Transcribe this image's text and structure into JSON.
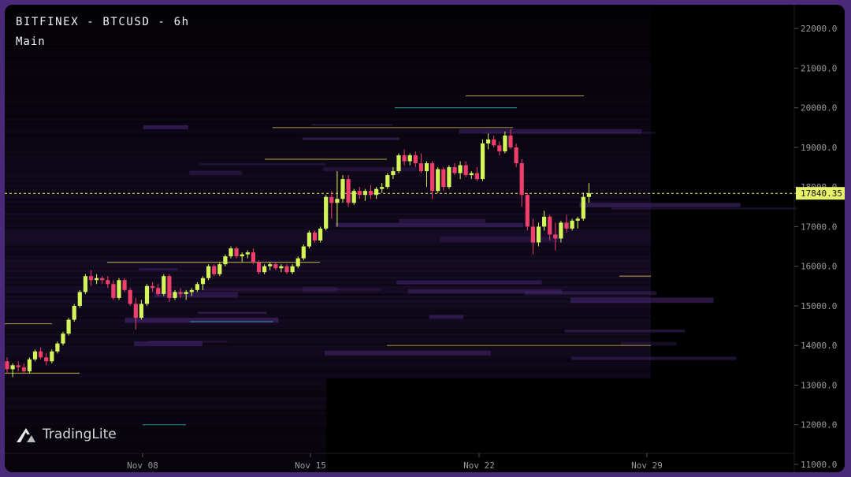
{
  "header": {
    "title": "BITFINEX - BTCUSD - 6h",
    "subtitle": "Main"
  },
  "brand": {
    "name": "TradingLite"
  },
  "colors": {
    "up": "#d4f55a",
    "down": "#ee3e6c",
    "price_line": "#e6f36a",
    "heat_low": "#2a1646",
    "heat_mid": "#4b2a7a",
    "axis_text": "#9a9a9a"
  },
  "chart_data": {
    "type": "candlestick",
    "exchange": "BITFINEX",
    "symbol": "BTCUSD",
    "interval": "6h",
    "ylim": [
      10800,
      22600
    ],
    "y_ticks": [
      "22000.0",
      "21000.0",
      "20000.0",
      "19000.0",
      "18000.0",
      "17000.0",
      "16000.0",
      "15000.0",
      "14000.0",
      "13000.0",
      "12000.0",
      "11000.0"
    ],
    "x_ticks": [
      "Nov 08",
      "Nov 15",
      "Nov 22",
      "Nov 29"
    ],
    "last_price": "17840.35",
    "ohlc": [
      [
        13600,
        13700,
        13300,
        13400
      ],
      [
        13400,
        13550,
        13200,
        13500
      ],
      [
        13500,
        13600,
        13350,
        13450
      ],
      [
        13450,
        13550,
        13300,
        13350
      ],
      [
        13350,
        13700,
        13300,
        13650
      ],
      [
        13650,
        13900,
        13600,
        13850
      ],
      [
        13850,
        13950,
        13650,
        13700
      ],
      [
        13700,
        13800,
        13500,
        13600
      ],
      [
        13600,
        13900,
        13550,
        13850
      ],
      [
        13850,
        14100,
        13800,
        14050
      ],
      [
        14050,
        14350,
        14000,
        14300
      ],
      [
        14300,
        14700,
        14250,
        14650
      ],
      [
        14650,
        15050,
        14600,
        15000
      ],
      [
        15000,
        15400,
        14950,
        15350
      ],
      [
        15350,
        15800,
        15300,
        15750
      ],
      [
        15750,
        15900,
        15500,
        15650
      ],
      [
        15650,
        15800,
        15550,
        15700
      ],
      [
        15700,
        15750,
        15550,
        15650
      ],
      [
        15650,
        15750,
        15450,
        15550
      ],
      [
        15550,
        15650,
        15150,
        15200
      ],
      [
        15200,
        15700,
        15150,
        15650
      ],
      [
        15650,
        15700,
        15350,
        15400
      ],
      [
        15400,
        15450,
        15000,
        15050
      ],
      [
        15050,
        15200,
        14400,
        14700
      ],
      [
        14700,
        15150,
        14650,
        15050
      ],
      [
        15050,
        15550,
        15000,
        15500
      ],
      [
        15500,
        15600,
        15350,
        15450
      ],
      [
        15450,
        15550,
        15250,
        15300
      ],
      [
        15300,
        15800,
        15250,
        15750
      ],
      [
        15750,
        15800,
        15100,
        15200
      ],
      [
        15200,
        15400,
        15150,
        15350
      ],
      [
        15350,
        15450,
        15200,
        15300
      ],
      [
        15300,
        15400,
        15150,
        15350
      ],
      [
        15350,
        15450,
        15250,
        15400
      ],
      [
        15400,
        15600,
        15350,
        15550
      ],
      [
        15550,
        15750,
        15400,
        15700
      ],
      [
        15700,
        16050,
        15650,
        16000
      ],
      [
        16000,
        16050,
        15750,
        15800
      ],
      [
        15800,
        16100,
        15750,
        16050
      ],
      [
        16050,
        16300,
        16000,
        16250
      ],
      [
        16250,
        16500,
        16200,
        16450
      ],
      [
        16450,
        16500,
        16200,
        16250
      ],
      [
        16250,
        16350,
        16100,
        16300
      ],
      [
        16300,
        16400,
        16200,
        16350
      ],
      [
        16350,
        16450,
        16050,
        16100
      ],
      [
        16100,
        16150,
        15800,
        15850
      ],
      [
        15850,
        16050,
        15800,
        16000
      ],
      [
        16000,
        16100,
        15900,
        16050
      ],
      [
        16050,
        16100,
        15900,
        15950
      ],
      [
        15950,
        16050,
        15850,
        16000
      ],
      [
        16000,
        16050,
        15800,
        15850
      ],
      [
        15850,
        16050,
        15800,
        16000
      ],
      [
        16000,
        16250,
        15950,
        16200
      ],
      [
        16200,
        16550,
        16150,
        16500
      ],
      [
        16500,
        16900,
        16450,
        16850
      ],
      [
        16850,
        16900,
        16600,
        16650
      ],
      [
        16650,
        17000,
        16600,
        16950
      ],
      [
        16950,
        17800,
        16900,
        17750
      ],
      [
        17750,
        17900,
        17200,
        17600
      ],
      [
        17600,
        18400,
        17000,
        17700
      ],
      [
        17700,
        18300,
        17600,
        18200
      ],
      [
        18200,
        18300,
        17500,
        17600
      ],
      [
        17600,
        17950,
        17550,
        17900
      ],
      [
        17900,
        18000,
        17700,
        17800
      ],
      [
        17800,
        17950,
        17650,
        17900
      ],
      [
        17900,
        18050,
        17700,
        17800
      ],
      [
        17800,
        18000,
        17700,
        17950
      ],
      [
        17950,
        18100,
        17850,
        18000
      ],
      [
        18000,
        18350,
        17950,
        18300
      ],
      [
        18300,
        18500,
        18200,
        18400
      ],
      [
        18400,
        18850,
        18350,
        18800
      ],
      [
        18800,
        18950,
        18550,
        18650
      ],
      [
        18650,
        18850,
        18550,
        18800
      ],
      [
        18800,
        18900,
        18500,
        18600
      ],
      [
        18600,
        18850,
        18350,
        18400
      ],
      [
        18400,
        18650,
        18000,
        18600
      ],
      [
        18600,
        18650,
        17700,
        17900
      ],
      [
        17900,
        18500,
        17850,
        18450
      ],
      [
        18450,
        18500,
        17900,
        18000
      ],
      [
        18000,
        18550,
        17950,
        18500
      ],
      [
        18500,
        18600,
        18300,
        18350
      ],
      [
        18350,
        18650,
        18200,
        18550
      ],
      [
        18550,
        18650,
        18250,
        18300
      ],
      [
        18300,
        18400,
        18200,
        18350
      ],
      [
        18350,
        18500,
        18150,
        18200
      ],
      [
        18200,
        19200,
        18150,
        19100
      ],
      [
        19100,
        19350,
        18950,
        19200
      ],
      [
        19200,
        19300,
        19000,
        19050
      ],
      [
        19050,
        19150,
        18800,
        18900
      ],
      [
        18900,
        19400,
        18850,
        19300
      ],
      [
        19300,
        19450,
        18950,
        19000
      ],
      [
        19000,
        19100,
        18500,
        18600
      ],
      [
        18600,
        18700,
        17500,
        17800
      ],
      [
        17800,
        17850,
        16900,
        17000
      ],
      [
        17000,
        17200,
        16300,
        16600
      ],
      [
        16600,
        17100,
        16500,
        17000
      ],
      [
        17000,
        17400,
        16900,
        17250
      ],
      [
        17250,
        17300,
        16650,
        16800
      ],
      [
        16800,
        17100,
        16400,
        16700
      ],
      [
        16700,
        17150,
        16600,
        17100
      ],
      [
        17100,
        17300,
        16850,
        16950
      ],
      [
        16950,
        17200,
        16900,
        17150
      ],
      [
        17150,
        17250,
        16950,
        17200
      ],
      [
        17200,
        17850,
        17150,
        17750
      ],
      [
        17750,
        18100,
        17600,
        17840
      ]
    ]
  }
}
